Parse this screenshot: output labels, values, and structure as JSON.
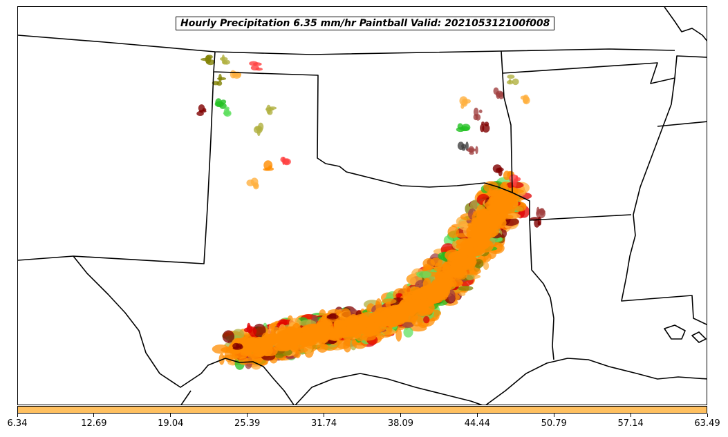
{
  "title": "Hourly Precipitation 6.35 mm/hr Paintball Valid: 202105312100f008",
  "colorbar": {
    "color": "#ffc060",
    "ticks": [
      "6.34",
      "12.69",
      "19.04",
      "25.39",
      "31.74",
      "38.09",
      "44.44",
      "50.79",
      "57.14",
      "63.49"
    ]
  },
  "member_colors": [
    "#e00000",
    "#ff4040",
    "#20c020",
    "#60e060",
    "#808000",
    "#b0b040",
    "#800000",
    "#a04040",
    "#ff8c00",
    "#ffb040",
    "#404040"
  ]
}
